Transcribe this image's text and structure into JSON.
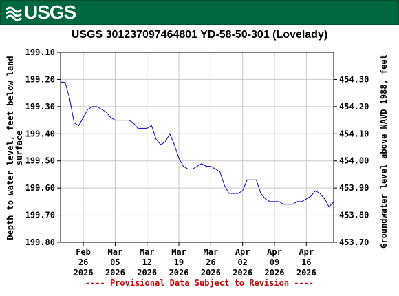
{
  "banner": {
    "agency": "USGS",
    "logo_icon": "usgs-wave-icon"
  },
  "chart_data": {
    "type": "line",
    "title": "USGS 301237097464801 YD-58-50-301 (Lovelady)",
    "ylabel_left": [
      "Depth to water level, feet below land",
      "surface"
    ],
    "ylabel_right": "Groundwater level above NAVD 1988, feet",
    "footnote": "---- Provisional Data Subject to Revision ----",
    "ylim_left": [
      199.1,
      199.8
    ],
    "left_ticks": [
      "199.10",
      "199.20",
      "199.30",
      "199.40",
      "199.50",
      "199.60",
      "199.70",
      "199.80"
    ],
    "right_ticks": [
      "454.30",
      "454.20",
      "454.10",
      "454.00",
      "453.90",
      "453.80",
      "453.70"
    ],
    "right_tick_values": [
      454.3,
      454.2,
      454.1,
      454.0,
      453.9,
      453.8,
      453.7
    ],
    "datum_offset": 653.5,
    "x_ticks": [
      {
        "month": "Feb",
        "day": "26",
        "year": "2026",
        "date": "2026-02-26"
      },
      {
        "month": "Mar",
        "day": "05",
        "year": "2026",
        "date": "2026-03-05"
      },
      {
        "month": "Mar",
        "day": "12",
        "year": "2026",
        "date": "2026-03-12"
      },
      {
        "month": "Mar",
        "day": "19",
        "year": "2026",
        "date": "2026-03-19"
      },
      {
        "month": "Mar",
        "day": "26",
        "year": "2026",
        "date": "2026-03-26"
      },
      {
        "month": "Apr",
        "day": "02",
        "year": "2026",
        "date": "2026-04-02"
      },
      {
        "month": "Apr",
        "day": "09",
        "year": "2026",
        "date": "2026-04-09"
      },
      {
        "month": "Apr",
        "day": "16",
        "year": "2026",
        "date": "2026-04-16"
      }
    ],
    "xlim": [
      "2026-02-21",
      "2026-04-22"
    ],
    "grid": true,
    "series": [
      {
        "color": "#0000cc",
        "points": [
          [
            "2026-02-21",
            199.21
          ],
          [
            "2026-02-22",
            199.21
          ],
          [
            "2026-02-23",
            199.27
          ],
          [
            "2026-02-24",
            199.36
          ],
          [
            "2026-02-25",
            199.37
          ],
          [
            "2026-02-26",
            199.34
          ],
          [
            "2026-02-27",
            199.31
          ],
          [
            "2026-02-28",
            199.3
          ],
          [
            "2026-03-01",
            199.3
          ],
          [
            "2026-03-02",
            199.31
          ],
          [
            "2026-03-03",
            199.32
          ],
          [
            "2026-03-04",
            199.34
          ],
          [
            "2026-03-05",
            199.35
          ],
          [
            "2026-03-06",
            199.35
          ],
          [
            "2026-03-07",
            199.35
          ],
          [
            "2026-03-08",
            199.35
          ],
          [
            "2026-03-09",
            199.36
          ],
          [
            "2026-03-10",
            199.38
          ],
          [
            "2026-03-11",
            199.38
          ],
          [
            "2026-03-12",
            199.38
          ],
          [
            "2026-03-13",
            199.37
          ],
          [
            "2026-03-14",
            199.42
          ],
          [
            "2026-03-15",
            199.44
          ],
          [
            "2026-03-16",
            199.43
          ],
          [
            "2026-03-17",
            199.4
          ],
          [
            "2026-03-18",
            199.44
          ],
          [
            "2026-03-19",
            199.49
          ],
          [
            "2026-03-20",
            199.52
          ],
          [
            "2026-03-21",
            199.53
          ],
          [
            "2026-03-22",
            199.53
          ],
          [
            "2026-03-23",
            199.52
          ],
          [
            "2026-03-24",
            199.51
          ],
          [
            "2026-03-25",
            199.52
          ],
          [
            "2026-03-26",
            199.52
          ],
          [
            "2026-03-27",
            199.53
          ],
          [
            "2026-03-28",
            199.54
          ],
          [
            "2026-03-29",
            199.59
          ],
          [
            "2026-03-30",
            199.62
          ],
          [
            "2026-03-31",
            199.62
          ],
          [
            "2026-04-01",
            199.62
          ],
          [
            "2026-04-02",
            199.61
          ],
          [
            "2026-04-03",
            199.57
          ],
          [
            "2026-04-04",
            199.57
          ],
          [
            "2026-04-05",
            199.57
          ],
          [
            "2026-04-06",
            199.62
          ],
          [
            "2026-04-07",
            199.64
          ],
          [
            "2026-04-08",
            199.65
          ],
          [
            "2026-04-09",
            199.65
          ],
          [
            "2026-04-10",
            199.65
          ],
          [
            "2026-04-11",
            199.66
          ],
          [
            "2026-04-12",
            199.66
          ],
          [
            "2026-04-13",
            199.66
          ],
          [
            "2026-04-14",
            199.65
          ],
          [
            "2026-04-15",
            199.65
          ],
          [
            "2026-04-16",
            199.64
          ],
          [
            "2026-04-17",
            199.63
          ],
          [
            "2026-04-18",
            199.61
          ],
          [
            "2026-04-19",
            199.62
          ],
          [
            "2026-04-20",
            199.64
          ],
          [
            "2026-04-21",
            199.67
          ],
          [
            "2026-04-22",
            199.65
          ]
        ]
      }
    ]
  }
}
